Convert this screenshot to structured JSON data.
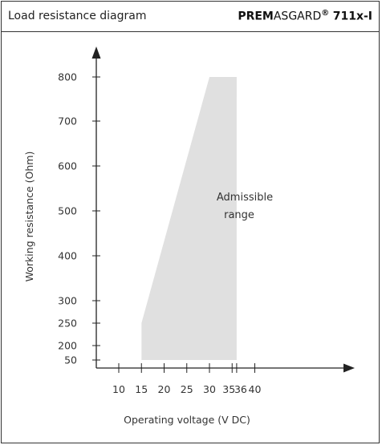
{
  "header": {
    "title": "Load resistance diagram",
    "brand_bold": "PREM",
    "brand_regular": "ASGARD",
    "brand_reg_mark": "®",
    "model": "711x-I"
  },
  "chart_data": {
    "type": "area",
    "xlabel": "Operating voltage  (V DC)",
    "ylabel": "Working resistance  (Ohm)",
    "x_ticks": [
      10,
      15,
      20,
      25,
      30,
      35,
      36,
      40
    ],
    "y_ticks": [
      50,
      200,
      250,
      300,
      400,
      500,
      600,
      700,
      800
    ],
    "x_tick_labels": [
      "10",
      "15",
      "20",
      "25",
      "30",
      "35",
      "36",
      "40"
    ],
    "y_tick_labels": [
      "50",
      "200",
      "250",
      "300",
      "400",
      "500",
      "600",
      "700",
      "800"
    ],
    "region": {
      "label_line1": "Admissible",
      "label_line2": "range",
      "polygon": [
        [
          15,
          50
        ],
        [
          15,
          250
        ],
        [
          30,
          800
        ],
        [
          36,
          800
        ],
        [
          36,
          50
        ]
      ]
    },
    "colors": {
      "region": "#e0e0e0",
      "axis": "#222222",
      "text": "#333333"
    }
  }
}
